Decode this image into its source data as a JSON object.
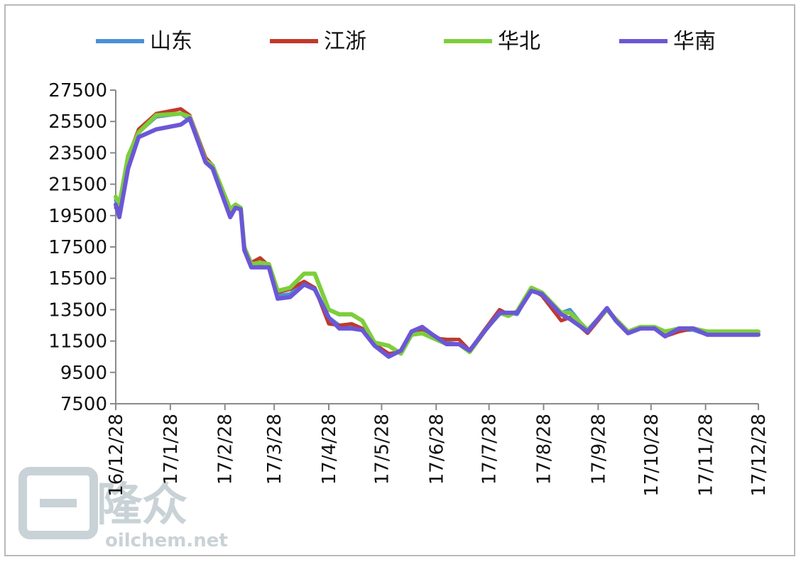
{
  "colors": {
    "山东": "#4a90d9",
    "江浙": "#c0392b",
    "华北": "#7dce3b",
    "华南": "#6b57d6"
  },
  "watermark": {
    "cn": "隆众",
    "url": "oilchem.net"
  },
  "chart_data": {
    "type": "line",
    "title": "",
    "xlabel": "",
    "ylabel": "",
    "ylim": [
      7500,
      27500
    ],
    "yticks": [
      7500,
      9500,
      11500,
      13500,
      15500,
      17500,
      19500,
      21500,
      23500,
      25500,
      27500
    ],
    "xlim": [
      "16/12/28",
      "17/12/28"
    ],
    "xticks": [
      "16/12/28",
      "17/1/28",
      "17/2/28",
      "17/3/28",
      "17/4/28",
      "17/5/28",
      "17/6/28",
      "17/7/28",
      "17/8/28",
      "17/9/28",
      "17/10/28",
      "17/11/28",
      "17/12/28"
    ],
    "legend_position": "top",
    "grid": false,
    "series": [
      {
        "name": "山东",
        "points": [
          [
            "16/12/28",
            20500
          ],
          [
            "16/12/30",
            19500
          ],
          [
            "17/1/4",
            23000
          ],
          [
            "17/1/10",
            24800
          ],
          [
            "17/1/20",
            25800
          ],
          [
            "17/2/3",
            26000
          ],
          [
            "17/2/8",
            25600
          ],
          [
            "17/2/17",
            23000
          ],
          [
            "17/2/21",
            22600
          ],
          [
            "17/3/3",
            19600
          ],
          [
            "17/3/6",
            20100
          ],
          [
            "17/3/9",
            19900
          ],
          [
            "17/3/11",
            17400
          ],
          [
            "17/3/15",
            16300
          ],
          [
            "17/3/20",
            16300
          ],
          [
            "17/3/25",
            16400
          ],
          [
            "17/3/30",
            14400
          ],
          [
            "17/4/6",
            14500
          ],
          [
            "17/4/14",
            15200
          ],
          [
            "17/4/20",
            14900
          ],
          [
            "17/4/28",
            13000
          ],
          [
            "17/5/4",
            12500
          ],
          [
            "17/5/11",
            12500
          ],
          [
            "17/5/17",
            12200
          ],
          [
            "17/5/24",
            11300
          ],
          [
            "17/6/1",
            10600
          ],
          [
            "17/6/8",
            10900
          ],
          [
            "17/6/14",
            12000
          ],
          [
            "17/6/20",
            12300
          ],
          [
            "17/6/26",
            11900
          ],
          [
            "17/7/4",
            11400
          ],
          [
            "17/7/11",
            11300
          ],
          [
            "17/7/17",
            10900
          ],
          [
            "17/7/26",
            12200
          ],
          [
            "17/8/3",
            13200
          ],
          [
            "17/8/8",
            13300
          ],
          [
            "17/8/13",
            13200
          ],
          [
            "17/8/21",
            14800
          ],
          [
            "17/8/27",
            14500
          ],
          [
            "17/9/7",
            13300
          ],
          [
            "17/9/12",
            13500
          ],
          [
            "17/9/22",
            12100
          ],
          [
            "17/10/3",
            13500
          ],
          [
            "17/10/8",
            12800
          ],
          [
            "17/10/15",
            12000
          ],
          [
            "17/10/22",
            12300
          ],
          [
            "17/10/30",
            12300
          ],
          [
            "17/11/5",
            11900
          ],
          [
            "17/11/13",
            12200
          ],
          [
            "17/11/21",
            12200
          ],
          [
            "17/11/29",
            11900
          ],
          [
            "17/12/8",
            11900
          ],
          [
            "17/12/14",
            12000
          ],
          [
            "17/12/28",
            12000
          ]
        ]
      },
      {
        "name": "江浙",
        "points": [
          [
            "16/12/28",
            20000
          ],
          [
            "16/12/30",
            19800
          ],
          [
            "17/1/4",
            23200
          ],
          [
            "17/1/10",
            25000
          ],
          [
            "17/1/20",
            26000
          ],
          [
            "17/2/3",
            26300
          ],
          [
            "17/2/8",
            25900
          ],
          [
            "17/2/17",
            23200
          ],
          [
            "17/2/21",
            22700
          ],
          [
            "17/3/3",
            19800
          ],
          [
            "17/3/6",
            20100
          ],
          [
            "17/3/9",
            20000
          ],
          [
            "17/3/11",
            17500
          ],
          [
            "17/3/15",
            16500
          ],
          [
            "17/3/20",
            16800
          ],
          [
            "17/3/25",
            16300
          ],
          [
            "17/3/30",
            14600
          ],
          [
            "17/4/6",
            14800
          ],
          [
            "17/4/14",
            15300
          ],
          [
            "17/4/20",
            14900
          ],
          [
            "17/4/28",
            12600
          ],
          [
            "17/5/4",
            12500
          ],
          [
            "17/5/11",
            12600
          ],
          [
            "17/5/17",
            12300
          ],
          [
            "17/5/24",
            11300
          ],
          [
            "17/6/1",
            10700
          ],
          [
            "17/6/8",
            10800
          ],
          [
            "17/6/14",
            12000
          ],
          [
            "17/6/20",
            12200
          ],
          [
            "17/6/26",
            11700
          ],
          [
            "17/7/4",
            11600
          ],
          [
            "17/7/11",
            11600
          ],
          [
            "17/7/17",
            10900
          ],
          [
            "17/7/26",
            12300
          ],
          [
            "17/8/3",
            13500
          ],
          [
            "17/8/8",
            13200
          ],
          [
            "17/8/13",
            13300
          ],
          [
            "17/8/21",
            14800
          ],
          [
            "17/8/27",
            14400
          ],
          [
            "17/9/7",
            12800
          ],
          [
            "17/9/12",
            13000
          ],
          [
            "17/9/22",
            12000
          ],
          [
            "17/10/3",
            13500
          ],
          [
            "17/10/8",
            12900
          ],
          [
            "17/10/15",
            12000
          ],
          [
            "17/10/22",
            12300
          ],
          [
            "17/10/30",
            12300
          ],
          [
            "17/11/5",
            11800
          ],
          [
            "17/11/13",
            12100
          ],
          [
            "17/11/21",
            12300
          ],
          [
            "17/11/29",
            12000
          ],
          [
            "17/12/8",
            12000
          ],
          [
            "17/12/14",
            12000
          ],
          [
            "17/12/28",
            12000
          ]
        ]
      },
      {
        "name": "华北",
        "points": [
          [
            "16/12/28",
            20700
          ],
          [
            "16/12/30",
            20200
          ],
          [
            "17/1/4",
            23300
          ],
          [
            "17/1/10",
            24800
          ],
          [
            "17/1/20",
            25900
          ],
          [
            "17/2/3",
            26000
          ],
          [
            "17/2/8",
            25800
          ],
          [
            "17/2/17",
            23000
          ],
          [
            "17/2/21",
            22700
          ],
          [
            "17/3/3",
            19900
          ],
          [
            "17/3/6",
            20200
          ],
          [
            "17/3/9",
            20000
          ],
          [
            "17/3/11",
            17500
          ],
          [
            "17/3/15",
            16400
          ],
          [
            "17/3/20",
            16500
          ],
          [
            "17/3/25",
            16400
          ],
          [
            "17/3/30",
            14700
          ],
          [
            "17/4/6",
            14900
          ],
          [
            "17/4/14",
            15800
          ],
          [
            "17/4/20",
            15800
          ],
          [
            "17/4/28",
            13500
          ],
          [
            "17/5/4",
            13200
          ],
          [
            "17/5/11",
            13200
          ],
          [
            "17/5/17",
            12800
          ],
          [
            "17/5/24",
            11400
          ],
          [
            "17/6/1",
            11200
          ],
          [
            "17/6/8",
            10700
          ],
          [
            "17/6/14",
            11900
          ],
          [
            "17/6/20",
            12000
          ],
          [
            "17/6/26",
            11700
          ],
          [
            "17/7/4",
            11300
          ],
          [
            "17/7/11",
            11300
          ],
          [
            "17/7/17",
            10800
          ],
          [
            "17/7/26",
            12200
          ],
          [
            "17/8/3",
            13300
          ],
          [
            "17/8/8",
            13100
          ],
          [
            "17/8/13",
            13400
          ],
          [
            "17/8/21",
            14900
          ],
          [
            "17/8/27",
            14600
          ],
          [
            "17/9/7",
            13300
          ],
          [
            "17/9/12",
            13300
          ],
          [
            "17/9/22",
            12200
          ],
          [
            "17/10/3",
            13500
          ],
          [
            "17/10/8",
            12900
          ],
          [
            "17/10/15",
            12100
          ],
          [
            "17/10/22",
            12400
          ],
          [
            "17/10/30",
            12400
          ],
          [
            "17/11/5",
            12100
          ],
          [
            "17/11/13",
            12300
          ],
          [
            "17/11/21",
            12300
          ],
          [
            "17/11/29",
            12100
          ],
          [
            "17/12/8",
            12100
          ],
          [
            "17/12/14",
            12100
          ],
          [
            "17/12/28",
            12100
          ]
        ]
      },
      {
        "name": "华南",
        "points": [
          [
            "16/12/28",
            20200
          ],
          [
            "16/12/30",
            19400
          ],
          [
            "17/1/4",
            22500
          ],
          [
            "17/1/10",
            24500
          ],
          [
            "17/1/20",
            25000
          ],
          [
            "17/2/3",
            25300
          ],
          [
            "17/2/8",
            25700
          ],
          [
            "17/2/17",
            22900
          ],
          [
            "17/2/21",
            22500
          ],
          [
            "17/3/3",
            19400
          ],
          [
            "17/3/6",
            20000
          ],
          [
            "17/3/9",
            19900
          ],
          [
            "17/3/11",
            17300
          ],
          [
            "17/3/15",
            16200
          ],
          [
            "17/3/20",
            16200
          ],
          [
            "17/3/25",
            16200
          ],
          [
            "17/3/30",
            14200
          ],
          [
            "17/4/6",
            14300
          ],
          [
            "17/4/14",
            15100
          ],
          [
            "17/4/20",
            14800
          ],
          [
            "17/4/28",
            13000
          ],
          [
            "17/5/4",
            12300
          ],
          [
            "17/5/11",
            12300
          ],
          [
            "17/5/17",
            12200
          ],
          [
            "17/5/24",
            11200
          ],
          [
            "17/6/1",
            10500
          ],
          [
            "17/6/8",
            10900
          ],
          [
            "17/6/14",
            12100
          ],
          [
            "17/6/20",
            12400
          ],
          [
            "17/6/26",
            11900
          ],
          [
            "17/7/4",
            11300
          ],
          [
            "17/7/11",
            11300
          ],
          [
            "17/7/17",
            10900
          ],
          [
            "17/7/26",
            12200
          ],
          [
            "17/8/3",
            13300
          ],
          [
            "17/8/8",
            13300
          ],
          [
            "17/8/13",
            13300
          ],
          [
            "17/8/21",
            14700
          ],
          [
            "17/8/27",
            14500
          ],
          [
            "17/9/7",
            13200
          ],
          [
            "17/9/12",
            12900
          ],
          [
            "17/9/22",
            12100
          ],
          [
            "17/10/3",
            13600
          ],
          [
            "17/10/8",
            12800
          ],
          [
            "17/10/15",
            12000
          ],
          [
            "17/10/22",
            12300
          ],
          [
            "17/10/30",
            12300
          ],
          [
            "17/11/5",
            11800
          ],
          [
            "17/11/13",
            12300
          ],
          [
            "17/11/21",
            12300
          ],
          [
            "17/11/29",
            11900
          ],
          [
            "17/12/8",
            11900
          ],
          [
            "17/12/14",
            11900
          ],
          [
            "17/12/28",
            11900
          ]
        ]
      }
    ]
  }
}
